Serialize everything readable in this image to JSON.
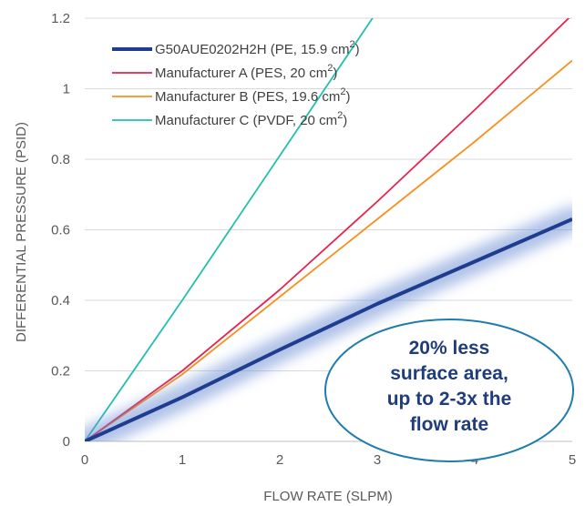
{
  "chart_data": {
    "type": "line",
    "xlabel": "FLOW RATE (SLPM)",
    "ylabel": "DIFFERENTIAL PRESSURE (PSID)",
    "xlim": [
      0,
      5
    ],
    "ylim": [
      0,
      1.2
    ],
    "x_ticks": [
      "0",
      "1",
      "2",
      "3",
      "4",
      "5"
    ],
    "y_ticks": [
      "0",
      "0.2",
      "0.4",
      "0.6",
      "0.8",
      "1",
      "1.2"
    ],
    "grid": "horizontal",
    "legend_position": "top-left",
    "series": [
      {
        "name": "G50AUE0202H2H (PE, 15.9 cm",
        "sup": "2",
        "close": ")",
        "color": "#1f3d8f",
        "glow": true,
        "x": [
          0,
          1,
          2,
          3,
          4,
          5
        ],
        "y": [
          0,
          0.125,
          0.26,
          0.39,
          0.51,
          0.63
        ]
      },
      {
        "name": "Manufacturer A (PES, 20 cm",
        "sup": "2",
        "close": ")",
        "color": "#e8214f",
        "x": [
          0,
          1,
          2,
          3,
          4,
          5
        ],
        "y": [
          0,
          0.2,
          0.43,
          0.68,
          0.94,
          1.21
        ]
      },
      {
        "name": "Manufacturer B (PES, 19.6 cm",
        "sup": "2",
        "close": ")",
        "color": "#f7901e",
        "x": [
          0,
          1,
          2,
          3,
          4,
          5
        ],
        "y": [
          0,
          0.19,
          0.41,
          0.63,
          0.85,
          1.08
        ]
      },
      {
        "name": "Manufacturer C (PVDF, 20 cm",
        "sup": "2",
        "close": ")",
        "color": "#22bfae",
        "x": [
          0,
          1,
          2,
          3
        ],
        "y": [
          0,
          0.4,
          0.81,
          1.22
        ]
      }
    ],
    "annotations": [
      {
        "lines": [
          "20% less",
          "surface area,",
          "up to 2-3x the",
          "flow rate"
        ],
        "border_color": "#1f7cae",
        "text_color": "#1f3d7a"
      }
    ]
  }
}
